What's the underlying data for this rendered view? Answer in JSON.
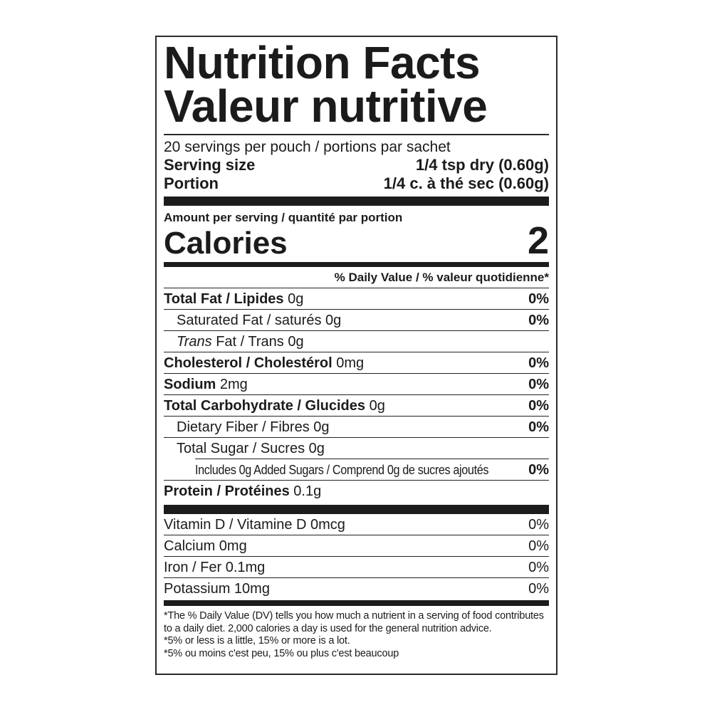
{
  "label": {
    "title_en": "Nutrition Facts",
    "title_fr": "Valeur nutritive",
    "servings_line": "20 servings per pouch / portions par sachet",
    "serving_rows": [
      {
        "label": "Serving size",
        "value": "1/4 tsp dry (0.60g)"
      },
      {
        "label": "Portion",
        "value": "1/4 c. à thé sec (0.60g)"
      }
    ],
    "amount_per_serving": "Amount per serving / quantité par portion",
    "calories": {
      "label": "Calories",
      "value": "2"
    },
    "daily_value_header": "% Daily Value / % valeur quotidienne*",
    "nutrients": [
      {
        "name": "Total Fat / Lipides",
        "amount": "0g",
        "dv": "0%",
        "bold": true,
        "indent": 0,
        "dv_bold": true
      },
      {
        "name": "Saturated Fat / saturés",
        "amount": "0g",
        "dv": "0%",
        "bold": false,
        "indent": 1,
        "dv_bold": true
      },
      {
        "name_italic": "Trans",
        "name": " Fat / Trans",
        "amount": "0g",
        "dv": "",
        "bold": false,
        "indent": 1,
        "dv_bold": true
      },
      {
        "name": "Cholesterol / Cholestérol",
        "amount": "0mg",
        "dv": "0%",
        "bold": true,
        "indent": 0,
        "dv_bold": true
      },
      {
        "name": "Sodium",
        "amount": "2mg",
        "dv": "0%",
        "bold": true,
        "indent": 0,
        "dv_bold": true
      },
      {
        "name": "Total Carbohydrate / Glucides",
        "amount": "0g",
        "dv": "0%",
        "bold": true,
        "indent": 0,
        "dv_bold": true
      },
      {
        "name": "Dietary Fiber / Fibres",
        "amount": "0g",
        "dv": "0%",
        "bold": false,
        "indent": 1,
        "dv_bold": true
      },
      {
        "name": "Total Sugar / Sucres",
        "amount": "0g",
        "dv": "",
        "bold": false,
        "indent": 1,
        "dv_bold": true
      },
      {
        "name": "Includes 0g Added Sugars / Comprend 0g de sucres ajoutés",
        "amount": "",
        "dv": "0%",
        "bold": false,
        "indent": 2,
        "dv_bold": true,
        "condensed": true
      },
      {
        "name": "Protein / Protéines",
        "amount": "0.1g",
        "dv": "",
        "bold": true,
        "indent": 0,
        "dv_bold": true
      }
    ],
    "vitamins": [
      {
        "name": "Vitamin D / Vitamine D",
        "amount": "0mcg",
        "dv": "0%"
      },
      {
        "name": "Calcium",
        "amount": "0mg",
        "dv": "0%"
      },
      {
        "name": "Iron / Fer",
        "amount": "0.1mg",
        "dv": "0%"
      },
      {
        "name": "Potassium",
        "amount": "10mg",
        "dv": "0%"
      }
    ],
    "footnotes": [
      "*The % Daily Value (DV) tells you how much a nutrient in a serving of food contributes to a daily diet. 2,000 calories a day is used for the general nutrition advice.",
      "*5% or less is a little, 15% or more is a lot.",
      "*5% ou moins c'est peu, 15% ou plus c'est beaucoup"
    ]
  }
}
